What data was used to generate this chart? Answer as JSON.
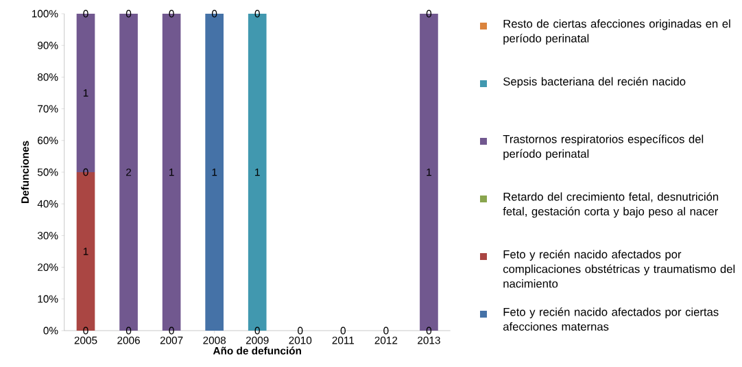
{
  "chart_data": {
    "type": "bar",
    "stacked": true,
    "xlabel": "Año de defunción",
    "ylabel": "Defunciones",
    "categories": [
      "2005",
      "2006",
      "2007",
      "2008",
      "2009",
      "2010",
      "2011",
      "2012",
      "2013"
    ],
    "ylim": [
      0,
      100
    ],
    "yticks": [
      {
        "value": 0,
        "label": "0%"
      },
      {
        "value": 10,
        "label": "10%"
      },
      {
        "value": 20,
        "label": "20%"
      },
      {
        "value": 30,
        "label": "30%"
      },
      {
        "value": 40,
        "label": "40%"
      },
      {
        "value": 50,
        "label": "50%"
      },
      {
        "value": 60,
        "label": "60%"
      },
      {
        "value": 70,
        "label": "70%"
      },
      {
        "value": 80,
        "label": "80%"
      },
      {
        "value": 90,
        "label": "90%"
      },
      {
        "value": 100,
        "label": "100%"
      }
    ],
    "legend": "right",
    "annotations": [
      {
        "text": "0",
        "x": "2005",
        "y": 0
      },
      {
        "text": "0",
        "x": "2005",
        "y": 50
      },
      {
        "text": "0",
        "x": "2005",
        "y": 100
      },
      {
        "text": "0",
        "x": "2006",
        "y": 0
      },
      {
        "text": "0",
        "x": "2006",
        "y": 100
      },
      {
        "text": "0",
        "x": "2007",
        "y": 0
      },
      {
        "text": "0",
        "x": "2007",
        "y": 100
      },
      {
        "text": "0",
        "x": "2008",
        "y": 100
      },
      {
        "text": "0",
        "x": "2009",
        "y": 0
      },
      {
        "text": "0",
        "x": "2009",
        "y": 100
      },
      {
        "text": "0",
        "x": "2010",
        "y": 0
      },
      {
        "text": "0",
        "x": "2011",
        "y": 0
      },
      {
        "text": "0",
        "x": "2012",
        "y": 0
      },
      {
        "text": "0",
        "x": "2013",
        "y": 0
      },
      {
        "text": "0",
        "x": "2013",
        "y": 100
      },
      "1",
      "1",
      "2",
      "1",
      "1",
      "1",
      "1"
    ],
    "series": [
      {
        "name": "Feto y recién nacido afectados por ciertas afecciones maternas",
        "color": "#4572a7",
        "values": [
          0,
          0,
          0,
          100,
          0,
          0,
          0,
          0,
          0
        ]
      },
      {
        "name": "Feto y recién nacido afectados por complicaciones obstétricas y traumatismo del nacimiento",
        "color": "#aa4643",
        "values": [
          50,
          0,
          0,
          0,
          0,
          0,
          0,
          0,
          0
        ]
      },
      {
        "name": "Retardo del crecimiento fetal, desnutrición fetal, gestación corta y bajo peso al nacer",
        "color": "#89a54e",
        "values": [
          0,
          0,
          0,
          0,
          0,
          0,
          0,
          0,
          0
        ]
      },
      {
        "name": "Trastornos respiratorios específicos del período perinatal",
        "color": "#71588f",
        "values": [
          50,
          100,
          100,
          0,
          0,
          0,
          0,
          0,
          100
        ]
      },
      {
        "name": "Sepsis bacteriana del recién nacido",
        "color": "#4198af",
        "values": [
          0,
          0,
          0,
          0,
          100,
          0,
          0,
          0,
          0
        ]
      },
      {
        "name": "Resto de ciertas afecciones originadas en el período perinatal",
        "color": "#db843d",
        "values": [
          0,
          0,
          0,
          0,
          0,
          0,
          0,
          0,
          0
        ]
      }
    ]
  }
}
